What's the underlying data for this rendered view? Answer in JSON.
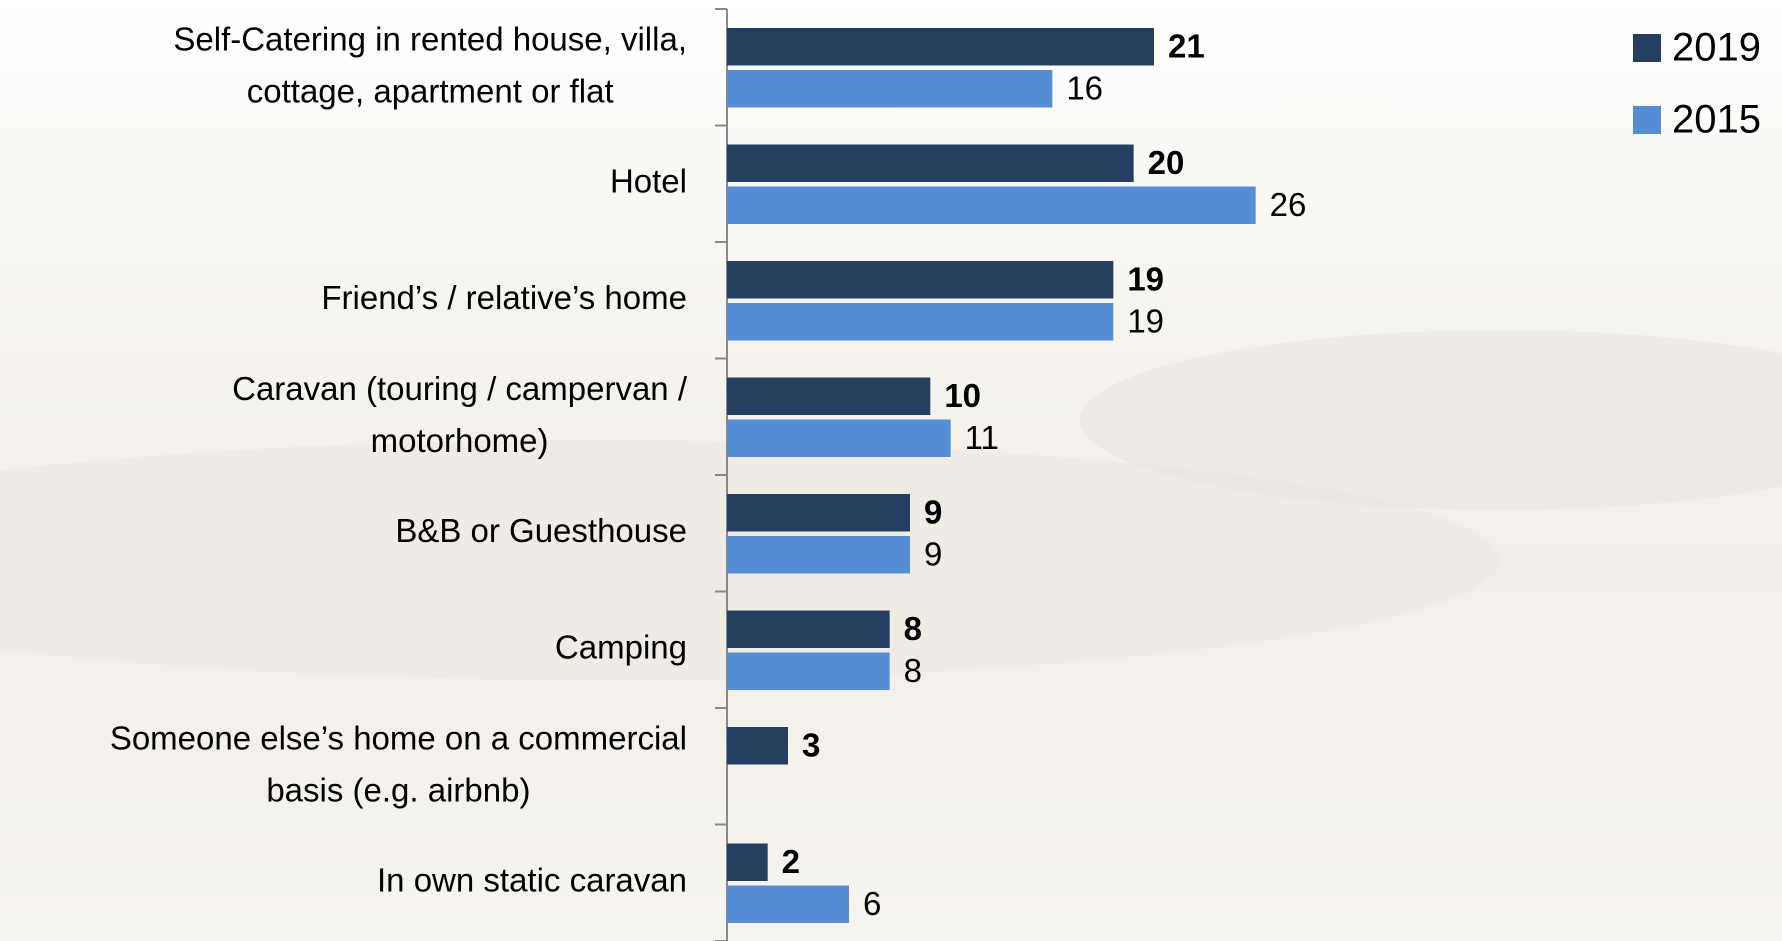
{
  "chart_data": {
    "type": "bar",
    "orientation": "horizontal",
    "categories": [
      "Self-Catering in rented house, villa, cottage, apartment or flat",
      "Hotel",
      "Friend’s / relative’s home",
      "Caravan (touring / campervan / motorhome)",
      "B&B or Guesthouse",
      "Camping",
      "Someone else’s home on a commercial basis (e.g. airbnb)",
      "In own static caravan"
    ],
    "series": [
      {
        "name": "2019",
        "color": "#243f60",
        "values": [
          21,
          20,
          19,
          10,
          9,
          8,
          3,
          2
        ]
      },
      {
        "name": "2015",
        "color": "#558ed5",
        "values": [
          16,
          26,
          19,
          11,
          9,
          8,
          null,
          6
        ]
      }
    ],
    "xlim": [
      0,
      30
    ],
    "legend": "top-right"
  }
}
